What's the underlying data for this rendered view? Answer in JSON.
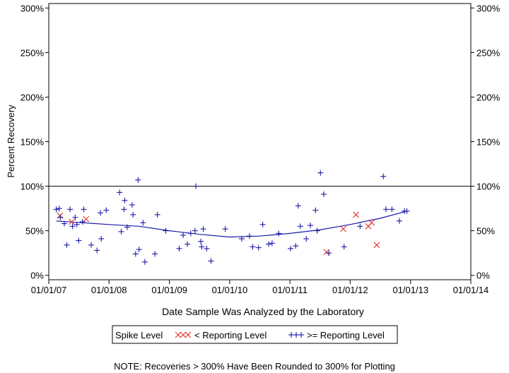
{
  "chart_data": {
    "type": "scatter",
    "xlabel": "Date Sample Was Analyzed by the Laboratory",
    "ylabel": "Percent Recovery",
    "xlim": [
      "01/01/07",
      "01/01/14"
    ],
    "ylim": [
      -5,
      305
    ],
    "x_ticks": [
      "01/01/07",
      "01/01/08",
      "01/01/09",
      "01/01/10",
      "01/01/11",
      "01/01/12",
      "01/01/13",
      "01/01/14"
    ],
    "y_ticks": [
      0,
      50,
      100,
      150,
      200,
      250,
      300
    ],
    "y_tick_labels": [
      "0%",
      "50%",
      "100%",
      "150%",
      "200%",
      "250%",
      "300%"
    ],
    "reference_line_y": 100,
    "legend": {
      "title": "Spike Level",
      "placement": "bottom"
    },
    "series": [
      {
        "name": "< Reporting Level",
        "marker": "x",
        "color": "#e8312a",
        "points": [
          {
            "x": "03/10/2007",
            "y": 67
          },
          {
            "x": "05/20/2007",
            "y": 60
          },
          {
            "x": "08/15/2007",
            "y": 63
          },
          {
            "x": "08/10/2011",
            "y": 26
          },
          {
            "x": "11/20/2011",
            "y": 52
          },
          {
            "x": "02/05/2012",
            "y": 68
          },
          {
            "x": "04/20/2012",
            "y": 55
          },
          {
            "x": "05/10/2012",
            "y": 59
          },
          {
            "x": "06/10/2012",
            "y": 34
          }
        ]
      },
      {
        "name": ">= Reporting Level",
        "marker": "+",
        "color": "#1a1aa8",
        "points": [
          {
            "x": "02/15/2007",
            "y": 74
          },
          {
            "x": "03/05/2007",
            "y": 75
          },
          {
            "x": "03/12/2007",
            "y": 65
          },
          {
            "x": "04/05/2007",
            "y": 58
          },
          {
            "x": "04/20/2007",
            "y": 34
          },
          {
            "x": "05/10/2007",
            "y": 74
          },
          {
            "x": "05/25/2007",
            "y": 55
          },
          {
            "x": "06/10/2007",
            "y": 65
          },
          {
            "x": "06/20/2007",
            "y": 57
          },
          {
            "x": "07/01/2007",
            "y": 39
          },
          {
            "x": "07/25/2007",
            "y": 60
          },
          {
            "x": "08/01/2007",
            "y": 74
          },
          {
            "x": "09/15/2007",
            "y": 34
          },
          {
            "x": "10/20/2007",
            "y": 28
          },
          {
            "x": "11/10/2007",
            "y": 70
          },
          {
            "x": "11/15/2007",
            "y": 41
          },
          {
            "x": "12/15/2007",
            "y": 73
          },
          {
            "x": "03/05/2008",
            "y": 93
          },
          {
            "x": "03/15/2008",
            "y": 49
          },
          {
            "x": "04/01/2008",
            "y": 74
          },
          {
            "x": "04/05/2008",
            "y": 84
          },
          {
            "x": "04/20/2008",
            "y": 54
          },
          {
            "x": "05/20/2008",
            "y": 79
          },
          {
            "x": "05/25/2008",
            "y": 68
          },
          {
            "x": "06/10/2008",
            "y": 24
          },
          {
            "x": "06/25/2008",
            "y": 107
          },
          {
            "x": "07/01/2008",
            "y": 29
          },
          {
            "x": "07/25/2008",
            "y": 59
          },
          {
            "x": "08/05/2008",
            "y": 15
          },
          {
            "x": "10/05/2008",
            "y": 24
          },
          {
            "x": "10/20/2008",
            "y": 68
          },
          {
            "x": "12/10/2008",
            "y": 50
          },
          {
            "x": "03/01/2009",
            "y": 30
          },
          {
            "x": "03/25/2009",
            "y": 45
          },
          {
            "x": "04/20/2009",
            "y": 35
          },
          {
            "x": "05/10/2009",
            "y": 47
          },
          {
            "x": "06/05/2009",
            "y": 50
          },
          {
            "x": "06/10/2009",
            "y": 100
          },
          {
            "x": "07/10/2009",
            "y": 38
          },
          {
            "x": "07/15/2009",
            "y": 32
          },
          {
            "x": "07/25/2009",
            "y": 52
          },
          {
            "x": "08/15/2009",
            "y": 30
          },
          {
            "x": "09/10/2009",
            "y": 16
          },
          {
            "x": "12/05/2009",
            "y": 52
          },
          {
            "x": "03/15/2010",
            "y": 41
          },
          {
            "x": "05/01/2010",
            "y": 44
          },
          {
            "x": "05/20/2010",
            "y": 32
          },
          {
            "x": "06/25/2010",
            "y": 31
          },
          {
            "x": "07/20/2010",
            "y": 57
          },
          {
            "x": "08/25/2010",
            "y": 35
          },
          {
            "x": "09/15/2010",
            "y": 36
          },
          {
            "x": "10/25/2010",
            "y": 47
          },
          {
            "x": "01/05/2011",
            "y": 30
          },
          {
            "x": "02/05/2011",
            "y": 33
          },
          {
            "x": "02/20/2011",
            "y": 78
          },
          {
            "x": "03/05/2011",
            "y": 55
          },
          {
            "x": "04/10/2011",
            "y": 41
          },
          {
            "x": "05/05/2011",
            "y": 56
          },
          {
            "x": "06/05/2011",
            "y": 73
          },
          {
            "x": "06/15/2011",
            "y": 50
          },
          {
            "x": "07/05/2011",
            "y": 115
          },
          {
            "x": "07/25/2011",
            "y": 91
          },
          {
            "x": "08/25/2011",
            "y": 25
          },
          {
            "x": "11/25/2011",
            "y": 32
          },
          {
            "x": "03/01/2012",
            "y": 55
          },
          {
            "x": "07/20/2012",
            "y": 111
          },
          {
            "x": "08/05/2012",
            "y": 74
          },
          {
            "x": "09/10/2012",
            "y": 74
          },
          {
            "x": "10/25/2012",
            "y": 61
          },
          {
            "x": "11/25/2012",
            "y": 72
          },
          {
            "x": "12/10/2012",
            "y": 72
          }
        ]
      }
    ],
    "trend_line": {
      "color": "#1a1aa8",
      "points": [
        {
          "x": "02/15/2007",
          "y": 61
        },
        {
          "x": "01/01/2008",
          "y": 57
        },
        {
          "x": "07/01/2008",
          "y": 55
        },
        {
          "x": "01/01/2009",
          "y": 50
        },
        {
          "x": "07/01/2009",
          "y": 46
        },
        {
          "x": "01/01/2010",
          "y": 43
        },
        {
          "x": "07/01/2010",
          "y": 44
        },
        {
          "x": "01/01/2011",
          "y": 47
        },
        {
          "x": "07/01/2011",
          "y": 51
        },
        {
          "x": "01/01/2012",
          "y": 57
        },
        {
          "x": "07/01/2012",
          "y": 64
        },
        {
          "x": "12/10/2012",
          "y": 72
        }
      ]
    },
    "note": "NOTE: Recoveries > 300% Have Been Rounded to 300% for Plotting"
  }
}
